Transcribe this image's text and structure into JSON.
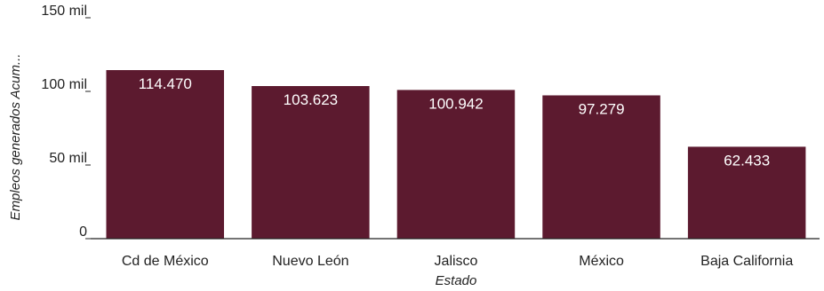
{
  "chart_data": {
    "type": "bar",
    "categories": [
      "Cd de México",
      "Nuevo León",
      "Jalisco",
      "México",
      "Baja California"
    ],
    "values": [
      114470,
      103623,
      100942,
      97279,
      62433
    ],
    "data_labels": [
      "114.470",
      "103.623",
      "100.942",
      "97.279",
      "62.433"
    ],
    "xlabel": "Estado",
    "ylabel": "Empleos generados Acum...",
    "ylim": [
      0,
      150000
    ],
    "yticks": [
      {
        "value": 0,
        "label": "0"
      },
      {
        "value": 50000,
        "label": "50 mil"
      },
      {
        "value": 100000,
        "label": "100 mil"
      },
      {
        "value": 150000,
        "label": "150 mil"
      }
    ],
    "bar_color": "#5c1a2f",
    "grid": false,
    "legend": "none"
  }
}
